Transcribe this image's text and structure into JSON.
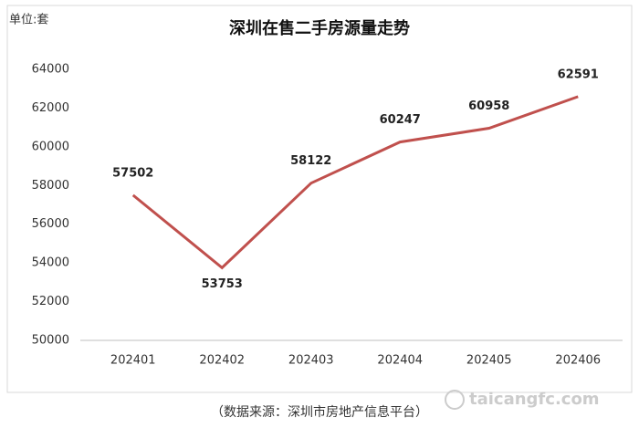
{
  "chart_data": {
    "type": "line",
    "title": "深圳在售二手房源量走势",
    "unit_label": "单位:套",
    "categories": [
      "202401",
      "202402",
      "202403",
      "202404",
      "202405",
      "202406"
    ],
    "series": [
      {
        "name": "在售二手房源量",
        "color": "#c0504d",
        "values": [
          57502,
          53753,
          58122,
          60247,
          60958,
          62591
        ]
      }
    ],
    "ylim": [
      50000,
      64000
    ],
    "yticks": [
      50000,
      52000,
      54000,
      56000,
      58000,
      60000,
      62000,
      64000
    ],
    "grid": false,
    "source": "（数据来源：深圳市房地产信息平台）",
    "watermark": "taicangfc.com"
  }
}
